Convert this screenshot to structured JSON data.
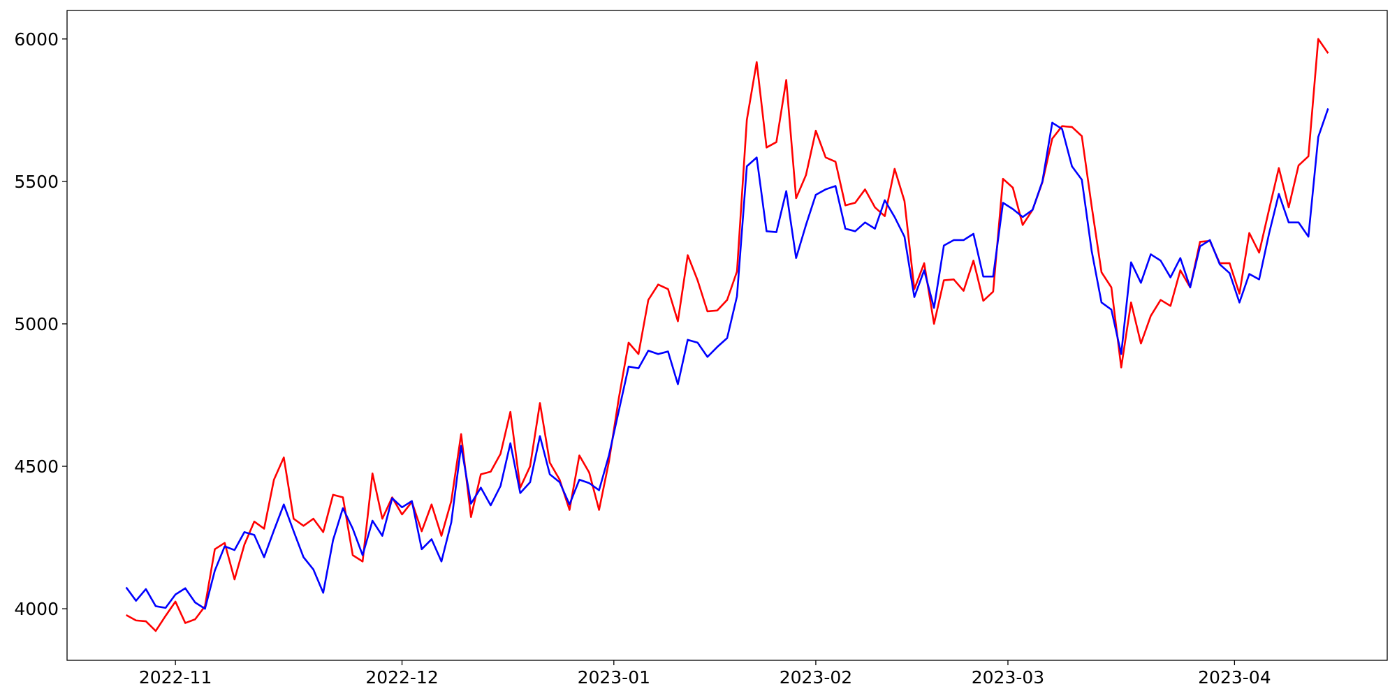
{
  "chart_data": {
    "type": "line",
    "xlim": [
      -6,
      128
    ],
    "xticks": [
      {
        "value": 5,
        "label": "2022-11"
      },
      {
        "value": 28,
        "label": "2022-12"
      },
      {
        "value": 49.5,
        "label": "2023-01"
      },
      {
        "value": 70,
        "label": "2023-02"
      },
      {
        "value": 89.5,
        "label": "2023-03"
      },
      {
        "value": 112.5,
        "label": "2023-04"
      }
    ],
    "ylim": [
      3819,
      6100
    ],
    "yticks": [
      4000,
      4500,
      5000,
      5500,
      6000
    ],
    "grid": false,
    "series": [
      {
        "color": "#ff0000",
        "values": [
          3978,
          3959,
          3956,
          3922,
          3975,
          4025,
          3950,
          3963,
          4009,
          4209,
          4231,
          4103,
          4225,
          4306,
          4281,
          4453,
          4531,
          4316,
          4291,
          4316,
          4269,
          4400,
          4391,
          4188,
          4166,
          4475,
          4316,
          4391,
          4331,
          4375,
          4272,
          4366,
          4256,
          4378,
          4613,
          4322,
          4472,
          4481,
          4544,
          4691,
          4425,
          4500,
          4722,
          4513,
          4453,
          4347,
          4538,
          4478,
          4347,
          4516,
          4738,
          4934,
          4894,
          5084,
          5138,
          5122,
          5009,
          5241,
          5153,
          5044,
          5047,
          5084,
          5184,
          5716,
          5919,
          5619,
          5638,
          5856,
          5441,
          5522,
          5678,
          5584,
          5569,
          5416,
          5425,
          5472,
          5409,
          5378,
          5544,
          5431,
          5122,
          5213,
          5000,
          5153,
          5156,
          5116,
          5222,
          5081,
          5113,
          5509,
          5478,
          5347,
          5400,
          5497,
          5650,
          5694,
          5691,
          5659,
          5413,
          5181,
          5128,
          4847,
          5075,
          4931,
          5028,
          5084,
          5063,
          5188,
          5128,
          5288,
          5291,
          5213,
          5213,
          5106,
          5319,
          5250,
          5400,
          5547,
          5409,
          5556,
          5588,
          6000,
          5950
        ]
      },
      {
        "color": "#0000ff",
        "values": [
          4075,
          4028,
          4069,
          4009,
          4003,
          4050,
          4072,
          4022,
          4000,
          4134,
          4219,
          4206,
          4269,
          4259,
          4181,
          4275,
          4366,
          4272,
          4181,
          4138,
          4056,
          4241,
          4353,
          4281,
          4188,
          4309,
          4256,
          4388,
          4356,
          4378,
          4209,
          4244,
          4166,
          4303,
          4572,
          4369,
          4425,
          4363,
          4431,
          4581,
          4406,
          4444,
          4606,
          4472,
          4444,
          4366,
          4453,
          4441,
          4416,
          4538,
          4694,
          4850,
          4844,
          4906,
          4894,
          4903,
          4788,
          4944,
          4934,
          4884,
          4919,
          4950,
          5097,
          5553,
          5584,
          5325,
          5322,
          5466,
          5231,
          5347,
          5453,
          5472,
          5484,
          5334,
          5325,
          5356,
          5334,
          5434,
          5375,
          5306,
          5094,
          5188,
          5056,
          5275,
          5294,
          5294,
          5316,
          5166,
          5166,
          5425,
          5403,
          5375,
          5400,
          5500,
          5706,
          5684,
          5553,
          5506,
          5256,
          5075,
          5050,
          4894,
          5216,
          5144,
          5244,
          5222,
          5163,
          5231,
          5128,
          5272,
          5294,
          5209,
          5178,
          5075,
          5175,
          5156,
          5316,
          5456,
          5356,
          5356,
          5306,
          5656,
          5756
        ]
      }
    ]
  }
}
